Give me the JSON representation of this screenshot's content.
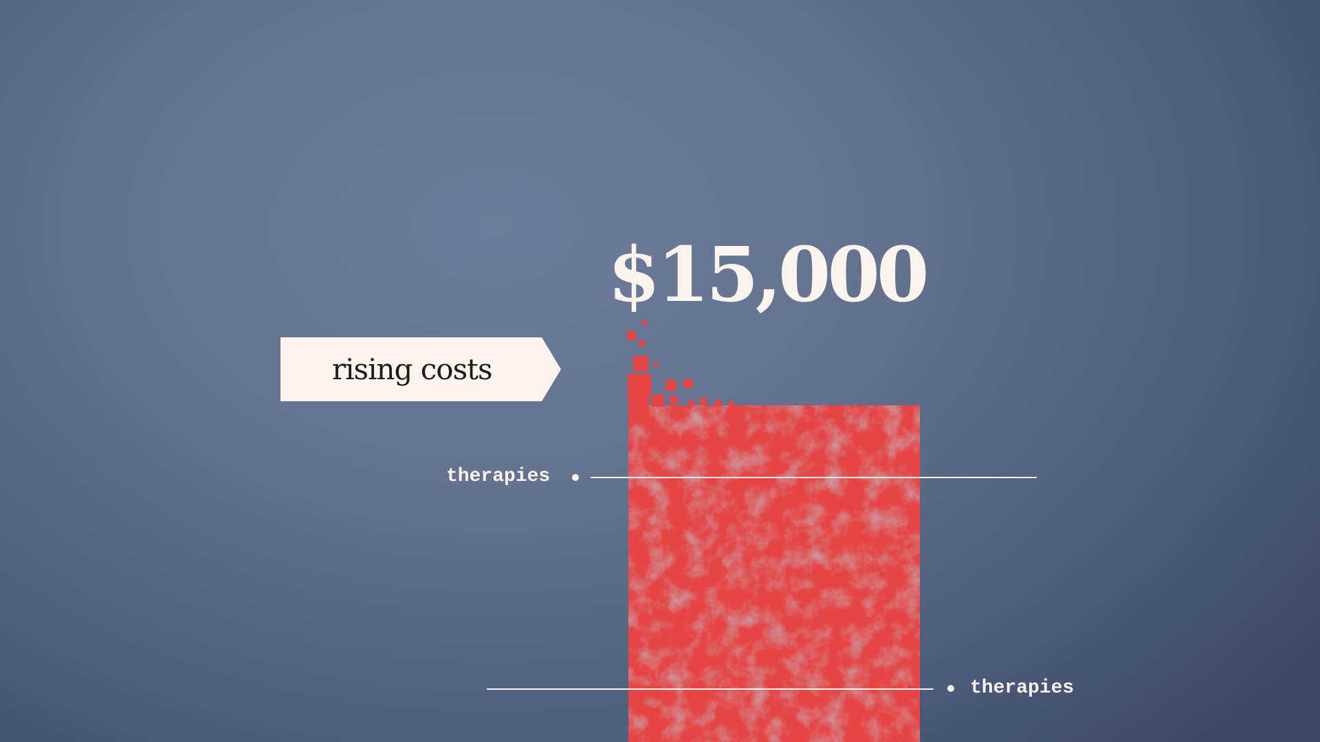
{
  "slide": {
    "tag_label": "rising costs",
    "big_value": "$15,000"
  },
  "chart_data": {
    "type": "bar",
    "title": "",
    "xlabel": "",
    "ylabel": "",
    "annotations": [
      {
        "text": "therapies",
        "side": "left"
      },
      {
        "text": "therapies",
        "side": "right"
      }
    ],
    "values": [
      15000
    ],
    "value_label": "$15,000",
    "grid": false,
    "legend": "none"
  },
  "colors": {
    "background": "#64728f",
    "bar": "#e54645",
    "bar_texture": "#9e4a52",
    "text_light": "#fbf4ec",
    "tag_fill": "#fdf5ed",
    "tag_text": "#1c1c1c"
  }
}
